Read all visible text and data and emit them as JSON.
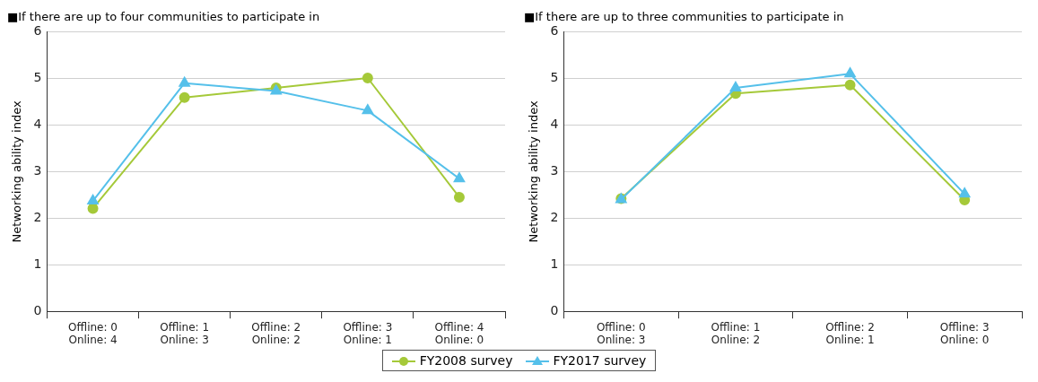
{
  "chart_data": [
    {
      "type": "line",
      "title": "■If there are up to four communities to participate in",
      "ylabel": "Networking ability index",
      "categories": [
        "Offline: 0\nOnline: 4",
        "Offline: 1\nOnline: 3",
        "Offline: 2\nOnline: 2",
        "Offline: 3\nOnline: 1",
        "Offline: 4\nOnline: 0"
      ],
      "series": [
        {
          "name": "FY2008 survey",
          "color": "#a5c939",
          "marker": "circle",
          "values": [
            2.21,
            4.59,
            4.8,
            5.01,
            2.45
          ]
        },
        {
          "name": "FY2017 survey",
          "color": "#55c0ea",
          "marker": "triangle",
          "values": [
            2.37,
            4.9,
            4.73,
            4.31,
            2.85
          ]
        }
      ],
      "ylim": [
        0,
        6
      ],
      "yticks": [
        0,
        1,
        2,
        3,
        4,
        5,
        6
      ],
      "grid": "y",
      "legend": "bottom"
    },
    {
      "type": "line",
      "title": "■If there are up to three communities to participate in",
      "ylabel": "Networking ability index",
      "categories": [
        "Offline: 0\nOnline: 3",
        "Offline: 1\nOnline: 2",
        "Offline: 2\nOnline: 1",
        "Offline: 3\nOnline: 0"
      ],
      "series": [
        {
          "color": "#a5c939",
          "marker": "circle",
          "values": [
            2.42,
            4.68,
            4.86,
            2.39
          ]
        },
        {
          "color": "#55c0ea",
          "marker": "triangle",
          "values": [
            2.4,
            4.8,
            5.1,
            2.52
          ]
        }
      ],
      "ylim": [
        0,
        6
      ],
      "yticks": [
        0,
        1,
        2,
        3,
        4,
        5,
        6
      ],
      "grid": "y"
    }
  ]
}
